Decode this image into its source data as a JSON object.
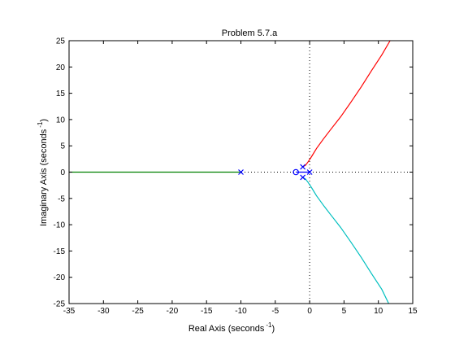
{
  "chart_data": {
    "type": "line",
    "title": "Problem 5.7.a",
    "xlabel": "Real Axis (seconds",
    "xlabel_sup": "-1",
    "xlabel_end": ")",
    "ylabel": "Imaginary Axis (seconds",
    "ylabel_sup": "-1",
    "ylabel_end": ")",
    "xlim": [
      -35,
      15
    ],
    "ylim": [
      -25,
      25
    ],
    "xticks": [
      -35,
      -30,
      -25,
      -20,
      -15,
      -10,
      -5,
      0,
      5,
      10,
      15
    ],
    "yticks": [
      -25,
      -20,
      -15,
      -10,
      -5,
      0,
      5,
      10,
      15,
      20,
      25
    ],
    "grid": false,
    "reference_lines": [
      {
        "orientation": "horizontal",
        "value": 0,
        "style": "dotted",
        "color": "#000000"
      },
      {
        "orientation": "vertical",
        "value": 0,
        "style": "dotted",
        "color": "#000000"
      }
    ],
    "series": [
      {
        "color": "#008000",
        "points": [
          [
            -10,
            0
          ],
          [
            -15,
            0
          ],
          [
            -20,
            0
          ],
          [
            -25,
            0
          ],
          [
            -30,
            0
          ],
          [
            -35,
            0
          ]
        ]
      },
      {
        "color": "#0000ff",
        "points": [
          [
            -2,
            0
          ],
          [
            -1.5,
            0
          ],
          [
            -1,
            0
          ],
          [
            -0.5,
            0
          ],
          [
            0,
            0
          ]
        ]
      },
      {
        "color": "#ff0000",
        "points": [
          [
            -1,
            1
          ],
          [
            -0.6,
            1.3
          ],
          [
            -0.2,
            2
          ],
          [
            0.3,
            3
          ],
          [
            1,
            4.5
          ],
          [
            2,
            6.3
          ],
          [
            3,
            8
          ],
          [
            4.5,
            10.5
          ],
          [
            6,
            13.3
          ],
          [
            7.5,
            16.2
          ],
          [
            9,
            19.3
          ],
          [
            10.5,
            22.3
          ],
          [
            11.7,
            25
          ]
        ]
      },
      {
        "color": "#00bfbf",
        "points": [
          [
            -1,
            -1
          ],
          [
            -0.6,
            -1.3
          ],
          [
            -0.2,
            -2
          ],
          [
            0.3,
            -3
          ],
          [
            1,
            -4.5
          ],
          [
            2,
            -6.3
          ],
          [
            3,
            -8
          ],
          [
            4.5,
            -10.5
          ],
          [
            6,
            -13.3
          ],
          [
            7.5,
            -16.2
          ],
          [
            9,
            -19.3
          ],
          [
            10.5,
            -22.3
          ],
          [
            11.5,
            -25
          ]
        ]
      }
    ],
    "poles": [
      [
        -10,
        0
      ],
      [
        0,
        0
      ],
      [
        -1,
        1
      ],
      [
        -1,
        -1
      ]
    ],
    "zeros": [
      [
        -2,
        0
      ]
    ],
    "marker_color": "#0000ff"
  }
}
